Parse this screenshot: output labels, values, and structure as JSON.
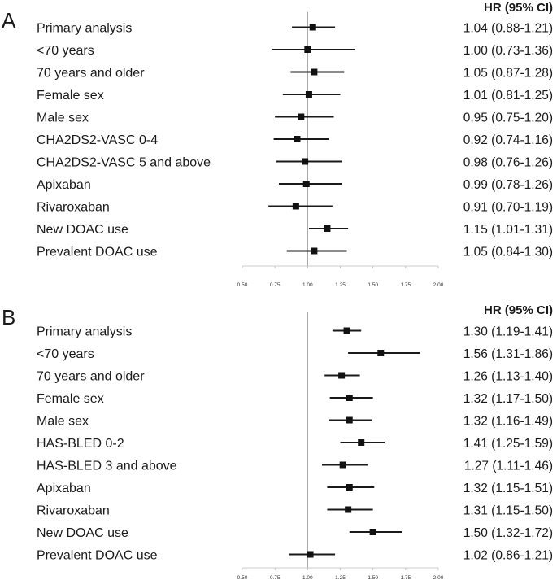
{
  "chart_data": [
    {
      "type": "forest",
      "panel": "A",
      "header": "HR (95% CI)",
      "xlim": [
        0.5,
        2.0
      ],
      "xticks": [
        "0.50",
        "0.75",
        "1.00",
        "1.25",
        "1.50",
        "1.75",
        "2.00"
      ],
      "reference": 1.0,
      "rows": [
        {
          "label": "Primary analysis",
          "hr": 1.04,
          "lo": 0.88,
          "hi": 1.21,
          "text": "1.04 (0.88-1.21)"
        },
        {
          "label": "<70 years",
          "hr": 1.0,
          "lo": 0.73,
          "hi": 1.36,
          "text": "1.00 (0.73-1.36)"
        },
        {
          "label": "70 years and older",
          "hr": 1.05,
          "lo": 0.87,
          "hi": 1.28,
          "text": "1.05 (0.87-1.28)"
        },
        {
          "label": "Female sex",
          "hr": 1.01,
          "lo": 0.81,
          "hi": 1.25,
          "text": "1.01 (0.81-1.25)"
        },
        {
          "label": "Male sex",
          "hr": 0.95,
          "lo": 0.75,
          "hi": 1.2,
          "text": "0.95 (0.75-1.20)"
        },
        {
          "label": "CHA2DS2-VASC 0-4",
          "hr": 0.92,
          "lo": 0.74,
          "hi": 1.16,
          "text": "0.92 (0.74-1.16)"
        },
        {
          "label": "CHA2DS2-VASC 5 and above",
          "hr": 0.98,
          "lo": 0.76,
          "hi": 1.26,
          "text": "0.98 (0.76-1.26)"
        },
        {
          "label": "Apixaban",
          "hr": 0.99,
          "lo": 0.78,
          "hi": 1.26,
          "text": "0.99 (0.78-1.26)"
        },
        {
          "label": "Rivaroxaban",
          "hr": 0.91,
          "lo": 0.7,
          "hi": 1.19,
          "text": "0.91 (0.70-1.19)"
        },
        {
          "label": "New DOAC use",
          "hr": 1.15,
          "lo": 1.01,
          "hi": 1.31,
          "text": "1.15 (1.01-1.31)"
        },
        {
          "label": "Prevalent DOAC use",
          "hr": 1.05,
          "lo": 0.84,
          "hi": 1.3,
          "text": "1.05 (0.84-1.30)"
        }
      ]
    },
    {
      "type": "forest",
      "panel": "B",
      "header": "HR (95% CI)",
      "xlim": [
        0.5,
        2.0
      ],
      "xticks": [
        "0.50",
        "0.75",
        "1.00",
        "1.25",
        "1.50",
        "1.75",
        "2.00"
      ],
      "reference": 1.0,
      "rows": [
        {
          "label": "Primary analysis",
          "hr": 1.3,
          "lo": 1.19,
          "hi": 1.41,
          "text": "1.30 (1.19-1.41)"
        },
        {
          "label": "<70 years",
          "hr": 1.56,
          "lo": 1.31,
          "hi": 1.86,
          "text": "1.56 (1.31-1.86)"
        },
        {
          "label": "70 years and older",
          "hr": 1.26,
          "lo": 1.13,
          "hi": 1.4,
          "text": "1.26 (1.13-1.40)"
        },
        {
          "label": "Female sex",
          "hr": 1.32,
          "lo": 1.17,
          "hi": 1.5,
          "text": "1.32 (1.17-1.50)"
        },
        {
          "label": "Male sex",
          "hr": 1.32,
          "lo": 1.16,
          "hi": 1.49,
          "text": "1.32 (1.16-1.49)"
        },
        {
          "label": "HAS-BLED 0-2",
          "hr": 1.41,
          "lo": 1.25,
          "hi": 1.59,
          "text": "1.41 (1.25-1.59)"
        },
        {
          "label": "HAS-BLED 3 and above",
          "hr": 1.27,
          "lo": 1.11,
          "hi": 1.46,
          "text": "1.27 (1.11-1.46)"
        },
        {
          "label": "Apixaban",
          "hr": 1.32,
          "lo": 1.15,
          "hi": 1.51,
          "text": "1.32 (1.15-1.51)"
        },
        {
          "label": "Rivaroxaban",
          "hr": 1.31,
          "lo": 1.15,
          "hi": 1.5,
          "text": "1.31 (1.15-1.50)"
        },
        {
          "label": "New DOAC use",
          "hr": 1.5,
          "lo": 1.32,
          "hi": 1.72,
          "text": "1.50 (1.32-1.72)"
        },
        {
          "label": "Prevalent DOAC use",
          "hr": 1.02,
          "lo": 0.86,
          "hi": 1.21,
          "text": "1.02 (0.86-1.21)"
        }
      ]
    }
  ]
}
